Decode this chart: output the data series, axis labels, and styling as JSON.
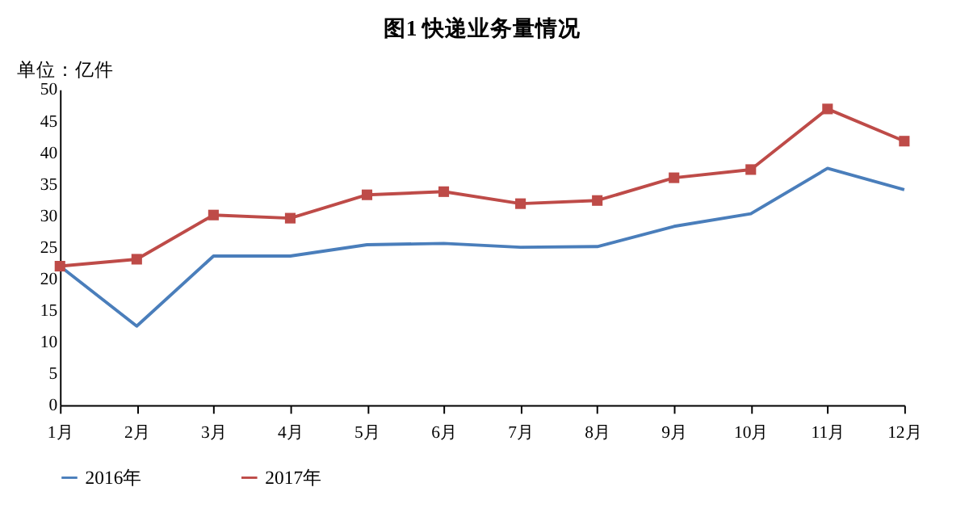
{
  "chart_data": {
    "type": "line",
    "title": "图1    快递业务量情况",
    "ylabel": "单位：亿件",
    "categories": [
      "1月",
      "2月",
      "3月",
      "4月",
      "5月",
      "6月",
      "7月",
      "8月",
      "9月",
      "10月",
      "11月",
      "12月"
    ],
    "series": [
      {
        "name": "2016年",
        "color": "#4a7ebb",
        "marker": "none",
        "values": [
          22,
          12.5,
          23.6,
          23.6,
          25.4,
          25.6,
          25,
          25.1,
          28.3,
          30.3,
          37.5,
          34.1
        ]
      },
      {
        "name": "2017年",
        "color": "#be4b48",
        "marker": "square",
        "values": [
          22,
          23.1,
          30.1,
          29.6,
          33.3,
          33.8,
          31.9,
          32.4,
          36,
          37.3,
          46.9,
          41.8
        ]
      }
    ],
    "ylim": [
      0,
      50
    ],
    "yticks": [
      0,
      5,
      10,
      15,
      20,
      25,
      30,
      35,
      40,
      45,
      50
    ],
    "grid": false,
    "legend": "bottom"
  }
}
